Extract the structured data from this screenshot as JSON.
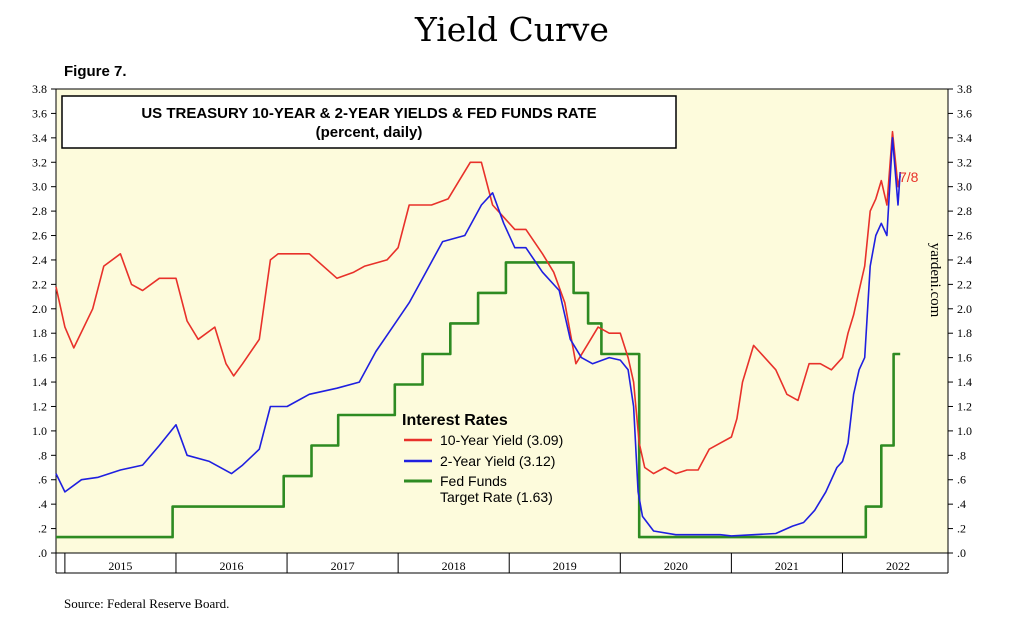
{
  "page": {
    "title": "Yield Curve",
    "figure_label": "Figure 7.",
    "source": "Source: Federal Reserve Board."
  },
  "chart_data": {
    "type": "line",
    "title": "US TREASURY 10-YEAR & 2-YEAR YIELDS & FED FUNDS RATE",
    "subtitle": "(percent, daily)",
    "watermark": "yardeni.com",
    "end_label": "7/8",
    "x_start": 2014.92,
    "x_end": 2022.95,
    "ylim": [
      0,
      3.8
    ],
    "y_ticks": [
      ".0",
      ".2",
      ".4",
      ".6",
      ".8",
      "1.0",
      "1.2",
      "1.4",
      "1.6",
      "1.8",
      "2.0",
      "2.2",
      "2.4",
      "2.6",
      "2.8",
      "3.0",
      "3.2",
      "3.4",
      "3.6",
      "3.8"
    ],
    "year_labels": [
      "2015",
      "2016",
      "2017",
      "2018",
      "2019",
      "2020",
      "2021",
      "2022"
    ],
    "legend_title": "Interest Rates",
    "legend": [
      "10-Year Yield (3.09)",
      "2-Year Yield (3.12)",
      "Fed Funds",
      "Target Rate (1.63)"
    ],
    "colors": {
      "ten_year": "#e8312a",
      "two_year": "#1f1fe0",
      "fed_funds": "#2e8b22",
      "plot_bg": "#fdfbdc"
    },
    "series": [
      {
        "key": "ten_year",
        "x": [
          2014.92,
          2015.0,
          2015.08,
          2015.25,
          2015.35,
          2015.5,
          2015.6,
          2015.7,
          2015.85,
          2016.0,
          2016.1,
          2016.2,
          2016.35,
          2016.45,
          2016.52,
          2016.6,
          2016.75,
          2016.85,
          2016.92,
          2017.0,
          2017.2,
          2017.45,
          2017.6,
          2017.7,
          2017.9,
          2018.0,
          2018.1,
          2018.3,
          2018.45,
          2018.55,
          2018.65,
          2018.75,
          2018.85,
          2018.95,
          2019.05,
          2019.15,
          2019.3,
          2019.4,
          2019.5,
          2019.6,
          2019.7,
          2019.8,
          2019.9,
          2020.0,
          2020.07,
          2020.12,
          2020.17,
          2020.22,
          2020.3,
          2020.4,
          2020.5,
          2020.6,
          2020.7,
          2020.8,
          2020.9,
          2021.0,
          2021.05,
          2021.1,
          2021.2,
          2021.25,
          2021.4,
          2021.5,
          2021.6,
          2021.7,
          2021.8,
          2021.9,
          2022.0,
          2022.05,
          2022.1,
          2022.15,
          2022.2,
          2022.25,
          2022.3,
          2022.35,
          2022.4,
          2022.45,
          2022.5,
          2022.52
        ],
        "y": [
          2.18,
          1.85,
          1.68,
          2.0,
          2.35,
          2.45,
          2.2,
          2.15,
          2.25,
          2.25,
          1.9,
          1.75,
          1.85,
          1.55,
          1.45,
          1.55,
          1.75,
          2.4,
          2.45,
          2.45,
          2.45,
          2.25,
          2.3,
          2.35,
          2.4,
          2.5,
          2.85,
          2.85,
          2.9,
          3.05,
          3.2,
          3.2,
          2.85,
          2.75,
          2.65,
          2.65,
          2.45,
          2.3,
          2.05,
          1.55,
          1.7,
          1.85,
          1.8,
          1.8,
          1.6,
          1.4,
          0.9,
          0.7,
          0.65,
          0.7,
          0.65,
          0.68,
          0.68,
          0.85,
          0.9,
          0.95,
          1.1,
          1.4,
          1.7,
          1.65,
          1.5,
          1.3,
          1.25,
          1.55,
          1.55,
          1.5,
          1.6,
          1.8,
          1.95,
          2.15,
          2.35,
          2.8,
          2.9,
          3.05,
          2.85,
          3.45,
          3.0,
          3.09
        ]
      },
      {
        "key": "two_year",
        "x": [
          2014.92,
          2015.0,
          2015.15,
          2015.3,
          2015.5,
          2015.7,
          2015.85,
          2016.0,
          2016.1,
          2016.3,
          2016.5,
          2016.6,
          2016.75,
          2016.85,
          2017.0,
          2017.2,
          2017.45,
          2017.65,
          2017.8,
          2017.95,
          2018.1,
          2018.25,
          2018.4,
          2018.6,
          2018.75,
          2018.85,
          2018.95,
          2019.05,
          2019.15,
          2019.3,
          2019.45,
          2019.55,
          2019.65,
          2019.75,
          2019.9,
          2020.0,
          2020.07,
          2020.12,
          2020.16,
          2020.2,
          2020.3,
          2020.5,
          2020.7,
          2020.9,
          2021.0,
          2021.2,
          2021.4,
          2021.55,
          2021.65,
          2021.75,
          2021.85,
          2021.95,
          2022.0,
          2022.05,
          2022.1,
          2022.15,
          2022.2,
          2022.25,
          2022.3,
          2022.35,
          2022.4,
          2022.45,
          2022.5,
          2022.52
        ],
        "y": [
          0.65,
          0.5,
          0.6,
          0.62,
          0.68,
          0.72,
          0.88,
          1.05,
          0.8,
          0.75,
          0.65,
          0.72,
          0.85,
          1.2,
          1.2,
          1.3,
          1.35,
          1.4,
          1.65,
          1.85,
          2.05,
          2.3,
          2.55,
          2.6,
          2.85,
          2.95,
          2.7,
          2.5,
          2.5,
          2.3,
          2.15,
          1.75,
          1.6,
          1.55,
          1.6,
          1.58,
          1.5,
          1.2,
          0.5,
          0.3,
          0.18,
          0.15,
          0.15,
          0.15,
          0.14,
          0.15,
          0.16,
          0.22,
          0.25,
          0.35,
          0.5,
          0.7,
          0.75,
          0.9,
          1.3,
          1.5,
          1.6,
          2.35,
          2.6,
          2.7,
          2.6,
          3.4,
          2.85,
          3.12
        ]
      },
      {
        "key": "fed_funds",
        "x": [
          2014.92,
          2015.97,
          2015.97,
          2016.97,
          2016.97,
          2017.22,
          2017.22,
          2017.46,
          2017.46,
          2017.97,
          2017.97,
          2018.22,
          2018.22,
          2018.47,
          2018.47,
          2018.72,
          2018.72,
          2018.97,
          2018.97,
          2019.58,
          2019.58,
          2019.71,
          2019.71,
          2019.83,
          2019.83,
          2020.17,
          2020.17,
          2022.21,
          2022.21,
          2022.35,
          2022.35,
          2022.46,
          2022.46,
          2022.52
        ],
        "y": [
          0.13,
          0.13,
          0.38,
          0.38,
          0.63,
          0.63,
          0.88,
          0.88,
          1.13,
          1.13,
          1.38,
          1.38,
          1.63,
          1.63,
          1.88,
          1.88,
          2.13,
          2.13,
          2.38,
          2.38,
          2.13,
          2.13,
          1.88,
          1.88,
          1.63,
          1.63,
          0.13,
          0.13,
          0.38,
          0.38,
          0.88,
          0.88,
          1.63,
          1.63
        ]
      }
    ]
  }
}
